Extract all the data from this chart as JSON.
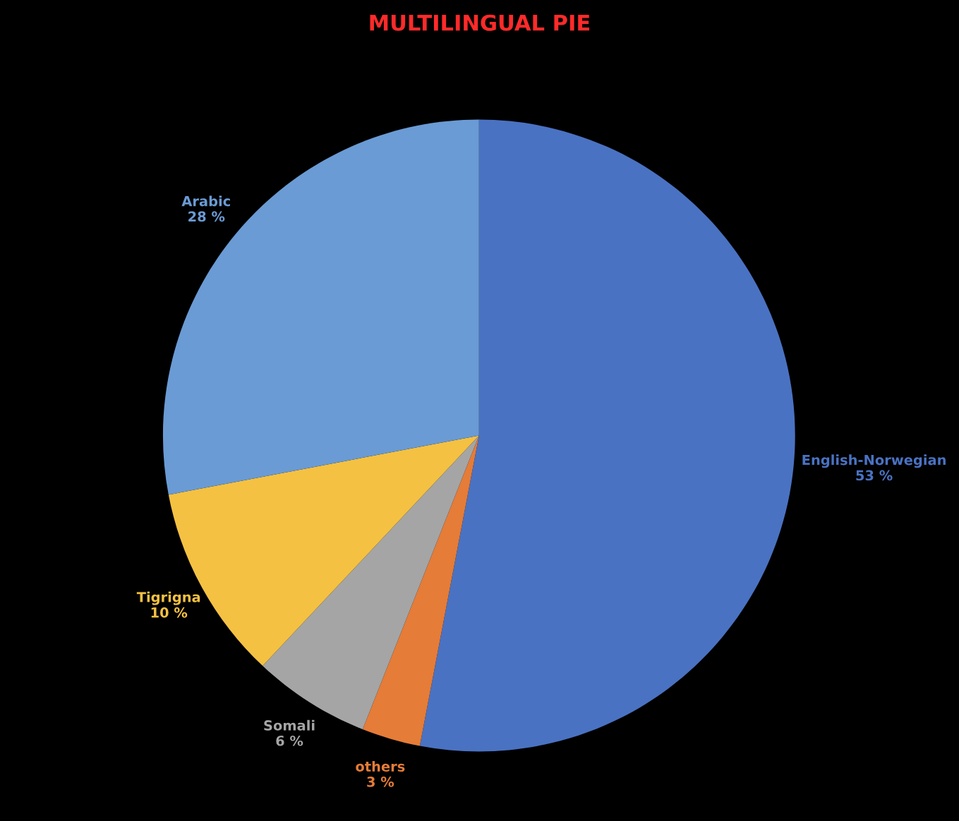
{
  "chart_data": {
    "type": "pie",
    "title": "MULTILINGUAL PIE",
    "categories": [
      "English-Norwegian",
      "others",
      "Somali",
      "Tigrigna",
      "Arabic"
    ],
    "values": [
      53,
      3,
      6,
      10,
      28
    ],
    "value_labels": [
      "53 %",
      "3 %",
      "6 %",
      "10 %",
      "28 %"
    ],
    "colors": [
      "#4a72c2",
      "#e57c38",
      "#a5a5a5",
      "#f4c142",
      "#6a9bd4"
    ],
    "legend": false
  }
}
